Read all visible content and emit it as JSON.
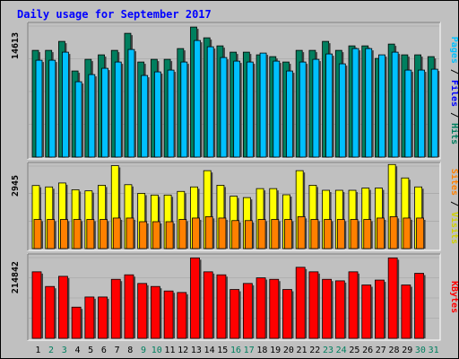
{
  "chart_data": {
    "type": "bar",
    "title": "Daily usage for September 2017",
    "categories": [
      "1",
      "2",
      "3",
      "4",
      "5",
      "6",
      "7",
      "8",
      "9",
      "10",
      "11",
      "12",
      "13",
      "14",
      "15",
      "16",
      "17",
      "18",
      "19",
      "20",
      "21",
      "22",
      "23",
      "24",
      "25",
      "26",
      "27",
      "28",
      "29",
      "30",
      "31"
    ],
    "weekend_days": [
      "2",
      "3",
      "9",
      "10",
      "16",
      "17",
      "23",
      "24",
      "30",
      "31"
    ],
    "panels": [
      {
        "id": "top",
        "max_label": "14613",
        "ylim": [
          0,
          14613
        ],
        "series": [
          {
            "name": "Hits",
            "color": "#007f5f",
            "values": [
              11900,
              11900,
              12900,
              9600,
              10900,
              11400,
              11900,
              13800,
              10600,
              10900,
              10900,
              12100,
              14500,
              13300,
              12400,
              11700,
              11700,
              11400,
              11200,
              10600,
              11900,
              11900,
              12900,
              11900,
              12400,
              12400,
              11000,
              12600,
              11400,
              11400,
              11200
            ]
          },
          {
            "name": "Files",
            "color": "#0000ff",
            "values": [
              0,
              0,
              0,
              0,
              0,
              0,
              0,
              0,
              0,
              0,
              0,
              0,
              0,
              0,
              0,
              0,
              0,
              0,
              0,
              0,
              0,
              0,
              0,
              0,
              0,
              0,
              0,
              0,
              0,
              0,
              0
            ]
          },
          {
            "name": "Pages",
            "color": "#00c0ff",
            "values": [
              10800,
              10800,
              11700,
              8400,
              9200,
              9900,
              10600,
              12000,
              9100,
              9500,
              9700,
              10600,
              13000,
              12300,
              11100,
              10700,
              10600,
              11600,
              10700,
              9600,
              10600,
              10900,
              11500,
              10400,
              12100,
              12100,
              11400,
              11700,
              9700,
              9700,
              9800
            ]
          }
        ]
      },
      {
        "id": "mid",
        "max_label": "2945",
        "ylim": [
          0,
          2945
        ],
        "series": [
          {
            "name": "Visits",
            "color": "#ffff00",
            "values": [
              2250,
              2200,
              2340,
              2100,
              2060,
              2260,
              2960,
              2280,
              1970,
              1910,
              1910,
              2040,
              2200,
              2780,
              2260,
              1870,
              1820,
              2140,
              2140,
              1920,
              2780,
              2260,
              2080,
              2080,
              2080,
              2160,
              2160,
              3000,
              2520,
              2200,
              0
            ]
          },
          {
            "name": "Sites",
            "color": "#ff8000",
            "values": [
              1040,
              1040,
              1040,
              1040,
              1040,
              1040,
              1090,
              1090,
              960,
              960,
              960,
              1040,
              1090,
              1140,
              1090,
              1000,
              1000,
              1040,
              1040,
              1040,
              1140,
              1040,
              1040,
              1040,
              1040,
              1040,
              1090,
              1140,
              1090,
              1090,
              0
            ]
          }
        ]
      },
      {
        "id": "bot",
        "max_label": "214842",
        "ylim": [
          0,
          214842
        ],
        "series": [
          {
            "name": "KBytes",
            "color": "#ff0000",
            "values": [
              177000,
              138000,
              165000,
              83000,
              110000,
              110000,
              157000,
              169000,
              146000,
              138000,
              126000,
              122000,
              214000,
              177000,
              169000,
              130000,
              146000,
              161000,
              157000,
              130000,
              189000,
              177000,
              157000,
              153000,
              177000,
              142000,
              155000,
              214000,
              142000,
              173000,
              0
            ]
          }
        ]
      }
    ],
    "right_legends": [
      {
        "panel": "top",
        "parts": [
          {
            "text": "Pages",
            "color": "#00c0ff"
          },
          {
            "text": " / ",
            "color": "#000000"
          },
          {
            "text": "Files",
            "color": "#0000ff"
          },
          {
            "text": " / ",
            "color": "#000000"
          },
          {
            "text": "Hits",
            "color": "#007f5f"
          }
        ]
      },
      {
        "panel": "mid",
        "parts": [
          {
            "text": "Sites",
            "color": "#ff8000"
          },
          {
            "text": " / ",
            "color": "#000000"
          },
          {
            "text": "Visits",
            "color": "#d0d000"
          }
        ]
      },
      {
        "panel": "bot",
        "parts": [
          {
            "text": "KBytes",
            "color": "#ff0000"
          }
        ]
      }
    ],
    "grid": true
  },
  "colors": {
    "background": "#c0c0c0",
    "plot_background": "#c0c0c0",
    "title": "#0000ff",
    "weekday_label": "#000000",
    "weekend_label": "#007f5f"
  }
}
